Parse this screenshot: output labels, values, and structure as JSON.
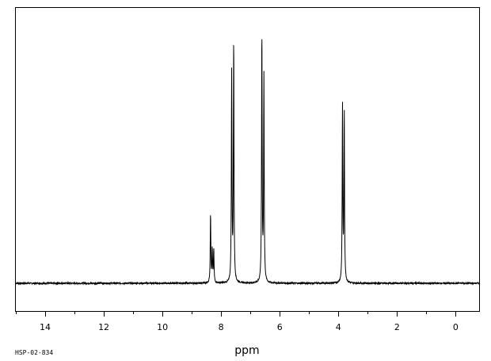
{
  "chart_data": {
    "type": "line",
    "title": "",
    "xlabel": "ppm",
    "ylabel": "",
    "xlim": [
      15,
      -0.8
    ],
    "x_reversed": true,
    "ylim": [
      -0.06,
      1.04
    ],
    "grid": false,
    "legend": "none",
    "x_ticks": [
      14,
      12,
      10,
      8,
      6,
      4,
      2,
      0
    ],
    "x_tick_labels": [
      "14",
      "12",
      "10",
      "8",
      "6",
      "4",
      "2",
      "0"
    ],
    "x_minor_step": 1,
    "baseline": 0.0,
    "series": [
      {
        "peaks": [
          {
            "shift": 8.36,
            "height": 0.28
          },
          {
            "shift": 8.3,
            "height": 0.13
          },
          {
            "shift": 8.25,
            "height": 0.13
          },
          {
            "shift": 7.64,
            "height": 0.83
          },
          {
            "shift": 7.57,
            "height": 0.97
          },
          {
            "shift": 6.61,
            "height": 1.0
          },
          {
            "shift": 6.54,
            "height": 0.82
          },
          {
            "shift": 3.86,
            "height": 0.7
          },
          {
            "shift": 3.8,
            "height": 0.68
          }
        ]
      }
    ]
  },
  "footer": {
    "sample_id": "HSP-02-834"
  }
}
